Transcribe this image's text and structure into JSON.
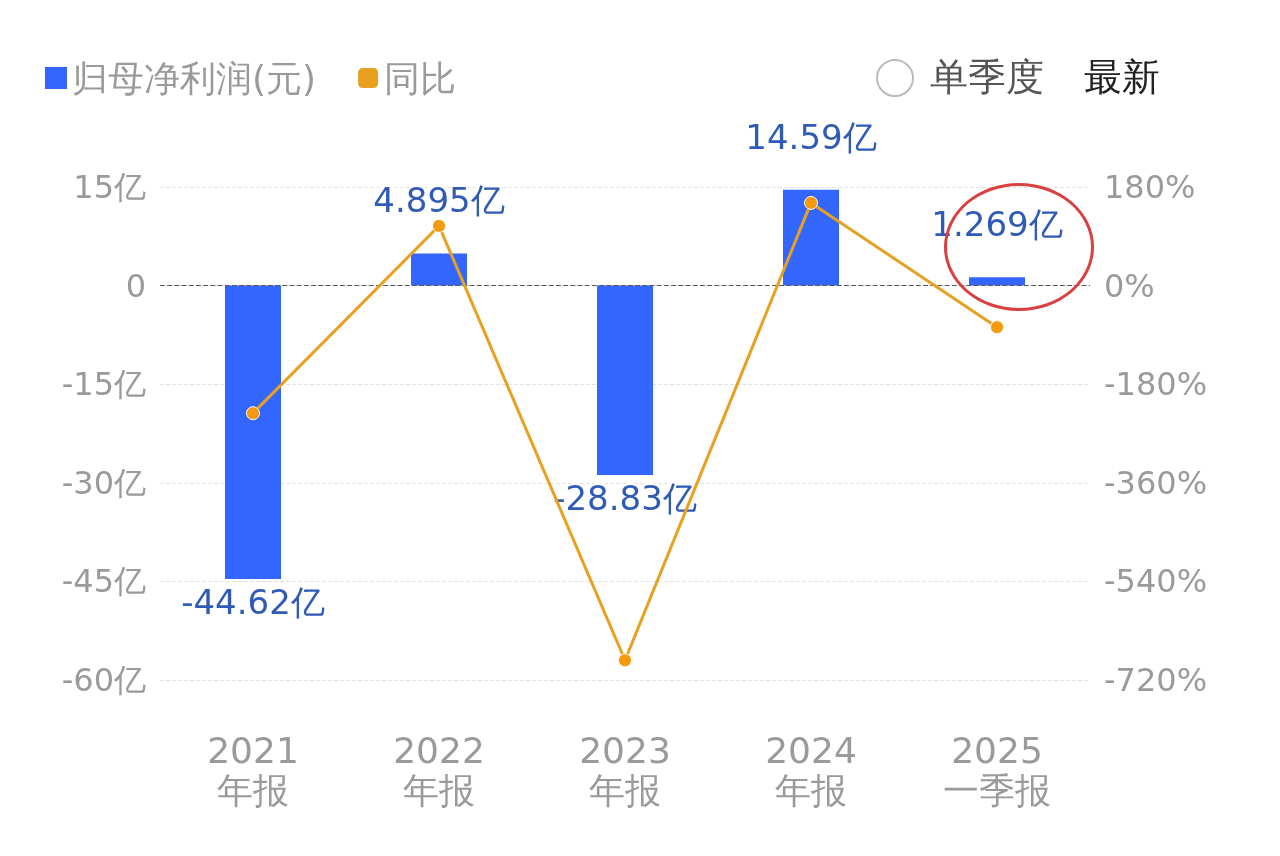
{
  "chart_data": {
    "type": "bar",
    "categories": [
      "2021\n年报",
      "2022\n年报",
      "2023\n年报",
      "2024\n年报",
      "2025\n一季报"
    ],
    "series": [
      {
        "name": "归母净利润(元)",
        "color": "#3366ff",
        "values": [
          -44.62,
          4.895,
          -28.83,
          14.59,
          1.269
        ],
        "value_labels": [
          "-44.62亿",
          "4.895亿",
          "-28.83亿",
          "14.59亿",
          "1.269亿"
        ]
      },
      {
        "name": "同比",
        "type": "line",
        "axis": "y2",
        "color": "#e8a020",
        "values": [
          -233,
          109,
          -684,
          151,
          -76
        ]
      }
    ],
    "ylim": [
      -60,
      15
    ],
    "yticks": [
      {
        "value": 15,
        "label": "15亿"
      },
      {
        "value": 0,
        "label": "0"
      },
      {
        "value": -15,
        "label": "-15亿"
      },
      {
        "value": -30,
        "label": "-30亿"
      },
      {
        "value": -45,
        "label": "-45亿"
      },
      {
        "value": -60,
        "label": "-60亿"
      }
    ],
    "y2lim": [
      -720,
      180
    ],
    "y2ticks": [
      {
        "value": 180,
        "label": "180%"
      },
      {
        "value": 0,
        "label": "0%"
      },
      {
        "value": -180,
        "label": "-180%"
      },
      {
        "value": -360,
        "label": "-360%"
      },
      {
        "value": -540,
        "label": "-540%"
      },
      {
        "value": -720,
        "label": "-720%"
      }
    ],
    "ref_lines": [
      {
        "axis": "y",
        "value": 0,
        "color": "#555555",
        "line_style": "dashed"
      }
    ],
    "grid": "y",
    "legend": "top left",
    "marker": "circle",
    "annotations": [
      "单季度",
      "最新"
    ]
  }
}
